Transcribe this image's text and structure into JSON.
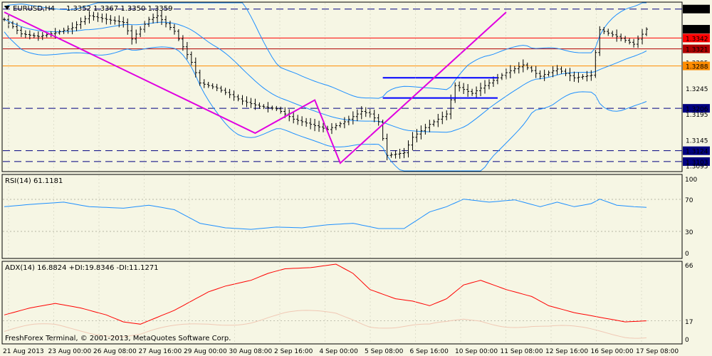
{
  "main_panel": {
    "symbol": "EURUSD,H4",
    "ohlc": "1.3352 1.3367 1.3350 1.3359",
    "price_labels": [
      {
        "text": "1.3398",
        "value": 1.3398,
        "boxed": true,
        "color": "#000000",
        "text_color": "#000000",
        "line": "dash"
      },
      {
        "text": "1.3359",
        "value": 1.3359,
        "boxed": true,
        "color": "#000000",
        "text_color": "#ffffff",
        "line": "none"
      },
      {
        "text": "1.3342",
        "value": 1.3342,
        "boxed": true,
        "color": "#ff0000",
        "text_color": "#ffffff",
        "line": "red"
      },
      {
        "text": "1.3321",
        "value": 1.3321,
        "boxed": true,
        "color": "#b00000",
        "text_color": "#ffffff",
        "line": "darkred"
      },
      {
        "text": "1.3295",
        "value": 1.3295,
        "boxed": false,
        "line": "none"
      },
      {
        "text": "1.3288",
        "value": 1.3288,
        "boxed": true,
        "color": "#ff8c00",
        "text_color": "#000000",
        "line": "orange"
      },
      {
        "text": "1.3245",
        "value": 1.3245,
        "boxed": false,
        "line": "none"
      },
      {
        "text": "1.3206",
        "value": 1.3206,
        "boxed": true,
        "color": "#000080",
        "text_color": "#ffffff",
        "line": "dash"
      },
      {
        "text": "1.3195",
        "value": 1.3195,
        "boxed": false,
        "line": "none"
      },
      {
        "text": "1.3145",
        "value": 1.3145,
        "boxed": false,
        "line": "none"
      },
      {
        "text": "1.3124",
        "value": 1.3124,
        "boxed": true,
        "color": "#000080",
        "text_color": "#ffffff",
        "line": "dash"
      },
      {
        "text": "1.3103",
        "value": 1.3103,
        "boxed": true,
        "color": "#000080",
        "text_color": "#ffffff",
        "line": "dash"
      },
      {
        "text": "1.3095",
        "value": 1.3095,
        "boxed": false,
        "line": "none"
      }
    ]
  },
  "rsi_panel": {
    "title": "RSI(14) 61.1181",
    "scale": [
      "100",
      "70",
      "30",
      "0"
    ]
  },
  "adx_panel": {
    "title": "ADX(14) 16.8824 +DI:19.8346 -DI:11.1271",
    "scale": [
      "66",
      "17",
      "0"
    ],
    "copyright": "FreshForex Terminal, © 2001-2013, MetaQuotes Software Corp."
  },
  "time_axis": [
    "21 Aug 2013",
    "23 Aug 00:00",
    "26 Aug 08:00",
    "27 Aug 16:00",
    "29 Aug 00:00",
    "30 Aug 08:00",
    "2 Sep 16:00",
    "4 Sep 00:00",
    "5 Sep 08:00",
    "6 Sep 16:00",
    "10 Sep 00:00",
    "11 Sep 08:00",
    "12 Sep 16:00",
    "16 Sep 00:00",
    "17 Sep 08:00"
  ],
  "colors": {
    "background": "#f6f6e4",
    "grid": "#c8c8b4",
    "bollinger": "#1e90ff",
    "zigzag": "#e000e0",
    "support_lines": "#0000ff",
    "rsi": "#1e90ff",
    "adx": "#ff0000"
  },
  "chart_data": [
    {
      "type": "candlestick",
      "name": "EURUSD,H4",
      "y_range": [
        1.3085,
        1.341
      ],
      "bar_count": 152,
      "price_anchors": [
        [
          0,
          1.3378
        ],
        [
          4,
          1.335
        ],
        [
          8,
          1.3345
        ],
        [
          12,
          1.3352
        ],
        [
          16,
          1.3362
        ],
        [
          20,
          1.3385
        ],
        [
          24,
          1.3378
        ],
        [
          28,
          1.3372
        ],
        [
          30,
          1.334
        ],
        [
          34,
          1.3378
        ],
        [
          36,
          1.3385
        ],
        [
          40,
          1.3355
        ],
        [
          44,
          1.3295
        ],
        [
          46,
          1.3255
        ],
        [
          50,
          1.3245
        ],
        [
          56,
          1.322
        ],
        [
          60,
          1.321
        ],
        [
          64,
          1.3205
        ],
        [
          68,
          1.3185
        ],
        [
          72,
          1.3175
        ],
        [
          76,
          1.3165
        ],
        [
          80,
          1.318
        ],
        [
          84,
          1.32
        ],
        [
          86,
          1.3195
        ],
        [
          88,
          1.318
        ],
        [
          90,
          1.3115
        ],
        [
          94,
          1.312
        ],
        [
          96,
          1.315
        ],
        [
          100,
          1.3175
        ],
        [
          104,
          1.3195
        ],
        [
          106,
          1.325
        ],
        [
          110,
          1.3235
        ],
        [
          114,
          1.3255
        ],
        [
          118,
          1.3275
        ],
        [
          122,
          1.329
        ],
        [
          126,
          1.3268
        ],
        [
          130,
          1.3282
        ],
        [
          134,
          1.3265
        ],
        [
          138,
          1.327
        ],
        [
          140,
          1.3358
        ],
        [
          144,
          1.3345
        ],
        [
          148,
          1.333
        ],
        [
          151,
          1.3359
        ]
      ],
      "rsi_anchors": [
        [
          0,
          62
        ],
        [
          6,
          65
        ],
        [
          14,
          68
        ],
        [
          20,
          62
        ],
        [
          28,
          60
        ],
        [
          34,
          64
        ],
        [
          40,
          58
        ],
        [
          46,
          40
        ],
        [
          52,
          34
        ],
        [
          58,
          32
        ],
        [
          64,
          35
        ],
        [
          70,
          34
        ],
        [
          76,
          38
        ],
        [
          82,
          40
        ],
        [
          88,
          33
        ],
        [
          94,
          33
        ],
        [
          100,
          55
        ],
        [
          104,
          62
        ],
        [
          108,
          72
        ],
        [
          114,
          68
        ],
        [
          120,
          71
        ],
        [
          126,
          62
        ],
        [
          130,
          68
        ],
        [
          134,
          62
        ],
        [
          138,
          66
        ],
        [
          140,
          72
        ],
        [
          144,
          64
        ],
        [
          148,
          62
        ],
        [
          151,
          61.1181
        ]
      ],
      "adx_anchors": [
        [
          0,
          22
        ],
        [
          6,
          28
        ],
        [
          12,
          32
        ],
        [
          18,
          28
        ],
        [
          24,
          22
        ],
        [
          28,
          16
        ],
        [
          32,
          14
        ],
        [
          36,
          20
        ],
        [
          40,
          26
        ],
        [
          44,
          34
        ],
        [
          48,
          42
        ],
        [
          52,
          47
        ],
        [
          58,
          52
        ],
        [
          62,
          58
        ],
        [
          66,
          62
        ],
        [
          72,
          63
        ],
        [
          78,
          66
        ],
        [
          82,
          58
        ],
        [
          86,
          44
        ],
        [
          92,
          36
        ],
        [
          96,
          34
        ],
        [
          100,
          30
        ],
        [
          104,
          36
        ],
        [
          108,
          48
        ],
        [
          112,
          52
        ],
        [
          118,
          44
        ],
        [
          124,
          38
        ],
        [
          128,
          30
        ],
        [
          134,
          24
        ],
        [
          140,
          20
        ],
        [
          146,
          16
        ],
        [
          151,
          16.8824
        ]
      ],
      "zigzag": [
        [
          0,
          1.3392
        ],
        [
          59,
          1.3158
        ],
        [
          73,
          1.3222
        ],
        [
          79,
          1.31
        ],
        [
          118,
          1.3392
        ]
      ],
      "support_lines": [
        [
          89,
          1.3265,
          116
        ],
        [
          89,
          1.3226,
          116
        ]
      ]
    }
  ]
}
